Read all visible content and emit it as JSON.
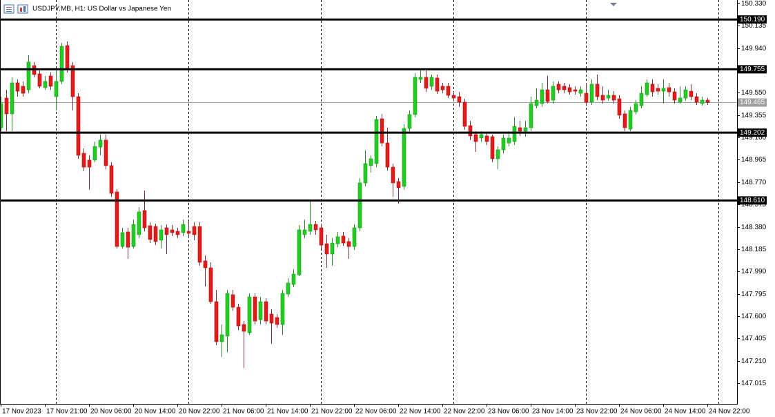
{
  "chart_data": {
    "type": "candlestick",
    "title": "USDJPY.MB, H1:  US Dollar vs Japanese Yen",
    "up_color": "#22cc22",
    "down_color": "#e01b1b",
    "ylim": [
      146.834,
      150.36
    ],
    "yticks": [
      {
        "value": 150.33,
        "label": "150.330"
      },
      {
        "value": 150.135,
        "label": "150.135"
      },
      {
        "value": 149.94,
        "label": "149.940"
      },
      {
        "value": 149.55,
        "label": "149.550"
      },
      {
        "value": 149.355,
        "label": "149.355"
      },
      {
        "value": 149.16,
        "label": "149.160"
      },
      {
        "value": 148.965,
        "label": "148.965"
      },
      {
        "value": 148.77,
        "label": "148.770"
      },
      {
        "value": 148.575,
        "label": "148.575"
      },
      {
        "value": 148.38,
        "label": "148.380"
      },
      {
        "value": 148.185,
        "label": "148.185"
      },
      {
        "value": 147.99,
        "label": "147.990"
      },
      {
        "value": 147.795,
        "label": "147.795"
      },
      {
        "value": 147.6,
        "label": "147.600"
      },
      {
        "value": 147.405,
        "label": "147.405"
      },
      {
        "value": 147.21,
        "label": "147.210"
      },
      {
        "value": 147.015,
        "label": "147.015"
      }
    ],
    "levels": [
      {
        "value": 150.19,
        "label": "150.190"
      },
      {
        "value": 149.755,
        "label": "149.755"
      },
      {
        "value": 149.202,
        "label": "149.202"
      },
      {
        "value": 148.61,
        "label": "148.610"
      }
    ],
    "current_price": {
      "value": 149.465,
      "label": "149.465"
    },
    "categories": [
      "17 Nov 2023",
      null,
      null,
      null,
      null,
      null,
      null,
      null,
      "17 Nov 21:00",
      null,
      null,
      null,
      null,
      null,
      null,
      null,
      "20 Nov 06:00",
      null,
      null,
      null,
      null,
      null,
      null,
      null,
      "20 Nov 14:00",
      null,
      null,
      null,
      null,
      null,
      null,
      null,
      "20 Nov 22:00",
      null,
      null,
      null,
      null,
      null,
      null,
      null,
      "21 Nov 06:00",
      null,
      null,
      null,
      null,
      null,
      null,
      null,
      "21 Nov 14:00",
      null,
      null,
      null,
      null,
      null,
      null,
      null,
      "21 Nov 22:00",
      null,
      null,
      null,
      null,
      null,
      null,
      null,
      "22 Nov 06:00",
      null,
      null,
      null,
      null,
      null,
      null,
      null,
      "22 Nov 14:00",
      null,
      null,
      null,
      null,
      null,
      null,
      null,
      "22 Nov 22:00",
      null,
      null,
      null,
      null,
      null,
      null,
      null,
      "23 Nov 06:00",
      null,
      null,
      null,
      null,
      null,
      null,
      null,
      "23 Nov 14:00",
      null,
      null,
      null,
      null,
      null,
      null,
      null,
      "23 Nov 22:00",
      null,
      null,
      null,
      null,
      null,
      null,
      null,
      "24 Nov 06:00",
      null,
      null,
      null,
      null,
      null,
      null,
      null,
      "24 Nov 14:00",
      null,
      null,
      null,
      null,
      null,
      null,
      null,
      "24 Nov 22:00"
    ],
    "open": [
      149.245,
      149.504,
      149.366,
      149.637,
      149.607,
      149.576,
      149.787,
      149.715,
      149.595,
      149.697,
      149.516,
      149.649,
      149.962,
      149.787,
      149.516,
      149.022,
      148.962,
      148.962,
      149.076,
      149.137,
      148.914,
      148.684,
      148.208,
      148.335,
      148.208,
      148.311,
      148.522,
      148.389,
      148.383,
      148.263,
      148.371,
      148.353,
      148.341,
      148.329,
      148.341,
      148.383,
      148.383,
      148.082,
      148.022,
      147.726,
      147.377,
      147.425,
      147.787,
      147.678,
      147.527,
      147.455,
      147.768,
      147.569,
      147.726,
      147.618,
      147.588,
      147.527,
      147.793,
      147.877,
      147.961,
      148.311,
      148.341,
      148.401,
      148.371,
      148.232,
      148.142,
      148.232,
      148.299,
      148.251,
      148.208,
      148.371,
      148.763,
      148.914,
      148.932,
      149.323,
      149.112,
      148.901,
      148.775,
      148.733,
      149.239,
      149.36,
      149.667,
      149.685,
      149.607,
      149.679,
      149.607,
      149.607,
      149.528,
      149.516,
      149.468,
      149.263,
      149.185,
      149.155,
      149.173,
      149.167,
      148.974,
      149.052,
      149.112,
      149.124,
      149.245,
      149.215,
      149.245,
      149.438,
      149.456,
      149.576,
      149.486,
      149.625,
      149.607,
      149.595,
      149.576,
      149.546,
      149.546,
      149.468,
      149.625,
      149.528,
      149.504,
      149.528,
      149.498,
      149.366,
      149.233,
      149.384,
      149.438,
      149.534,
      149.625,
      149.589,
      149.564,
      149.595,
      149.558,
      149.468,
      149.504,
      149.564,
      149.516,
      149.456,
      149.486
    ],
    "high": [
      149.516,
      149.576,
      149.685,
      149.667,
      149.649,
      149.878,
      149.818,
      149.757,
      149.697,
      149.727,
      149.757,
      149.986,
      149.998,
      149.818,
      149.546,
      149.064,
      149.004,
      149.124,
      149.185,
      149.185,
      148.944,
      148.709,
      148.371,
      148.371,
      148.443,
      148.552,
      148.697,
      148.419,
      148.407,
      148.395,
      148.401,
      148.395,
      148.371,
      148.443,
      148.431,
      148.419,
      148.419,
      148.13,
      148.07,
      147.829,
      147.527,
      147.829,
      147.829,
      147.708,
      147.557,
      147.799,
      147.799,
      147.768,
      147.756,
      147.66,
      147.618,
      147.829,
      147.931,
      148.01,
      148.395,
      148.443,
      148.6,
      148.431,
      148.401,
      148.311,
      148.281,
      148.335,
      148.335,
      148.281,
      148.401,
      148.805,
      149.046,
      149.004,
      149.347,
      149.366,
      149.245,
      148.932,
      148.805,
      149.275,
      149.396,
      149.721,
      149.757,
      149.757,
      149.709,
      149.709,
      149.637,
      149.637,
      149.558,
      149.558,
      149.498,
      149.305,
      149.215,
      149.215,
      149.203,
      149.185,
      149.082,
      149.185,
      149.215,
      149.335,
      149.305,
      149.305,
      149.516,
      149.589,
      149.637,
      149.697,
      149.649,
      149.649,
      149.637,
      149.625,
      149.607,
      149.607,
      149.637,
      149.667,
      149.709,
      149.607,
      149.576,
      149.564,
      149.528,
      149.396,
      149.426,
      149.486,
      149.607,
      149.667,
      149.667,
      149.625,
      149.667,
      149.637,
      149.589,
      149.607,
      149.607,
      149.625,
      149.546,
      149.516,
      149.504
    ],
    "low": [
      149.215,
      149.215,
      149.215,
      149.516,
      149.516,
      149.546,
      149.685,
      149.589,
      149.576,
      149.576,
      149.396,
      149.625,
      149.727,
      149.396,
      148.974,
      148.865,
      148.703,
      148.944,
      149.004,
      148.883,
      148.642,
      148.19,
      148.19,
      148.1,
      148.19,
      148.281,
      148.341,
      148.238,
      148.22,
      148.19,
      148.142,
      148.299,
      148.281,
      148.299,
      148.281,
      148.263,
      148.04,
      147.859,
      147.708,
      147.347,
      147.244,
      147.286,
      147.648,
      147.479,
      147.148,
      147.437,
      147.527,
      147.527,
      147.527,
      147.359,
      147.497,
      147.437,
      147.768,
      147.853,
      147.949,
      148.281,
      148.311,
      148.311,
      148.19,
      148.022,
      148.04,
      148.202,
      148.214,
      148.1,
      148.178,
      148.341,
      148.733,
      148.853,
      148.901,
      149.082,
      148.871,
      148.642,
      148.582,
      148.703,
      149.203,
      149.335,
      149.637,
      149.558,
      149.576,
      149.54,
      149.546,
      149.504,
      149.474,
      149.426,
      149.227,
      149.137,
      149.034,
      149.124,
      149.094,
      148.944,
      148.883,
      149.022,
      149.082,
      149.094,
      149.173,
      149.167,
      149.215,
      149.414,
      149.426,
      149.456,
      149.456,
      149.546,
      149.546,
      149.534,
      149.534,
      149.516,
      149.444,
      149.444,
      149.486,
      149.456,
      149.48,
      149.456,
      149.323,
      149.215,
      149.215,
      149.36,
      149.414,
      149.516,
      149.516,
      149.534,
      149.456,
      149.516,
      149.456,
      149.456,
      149.48,
      149.486,
      149.444,
      149.438,
      149.444
    ],
    "close": [
      149.456,
      149.366,
      149.637,
      149.564,
      149.546,
      149.818,
      149.709,
      149.607,
      149.649,
      149.607,
      149.649,
      149.956,
      149.757,
      149.516,
      149.004,
      148.901,
      148.901,
      149.082,
      149.137,
      148.914,
      148.672,
      148.208,
      148.329,
      148.202,
      148.401,
      148.51,
      148.371,
      148.269,
      148.251,
      148.353,
      148.311,
      148.329,
      148.311,
      148.401,
      148.323,
      148.311,
      148.07,
      148.022,
      147.726,
      147.377,
      147.437,
      147.799,
      147.678,
      147.515,
      147.467,
      147.768,
      147.557,
      147.726,
      147.557,
      147.539,
      147.527,
      147.799,
      147.889,
      147.967,
      148.353,
      148.353,
      148.401,
      148.353,
      148.22,
      148.142,
      148.238,
      148.293,
      148.238,
      148.208,
      148.371,
      148.763,
      148.932,
      148.974,
      149.317,
      149.112,
      148.901,
      148.763,
      148.721,
      149.239,
      149.36,
      149.685,
      149.685,
      149.589,
      149.685,
      149.564,
      149.576,
      149.528,
      149.504,
      149.468,
      149.257,
      149.173,
      149.124,
      149.185,
      149.124,
      148.974,
      149.052,
      149.155,
      149.155,
      149.257,
      149.215,
      149.245,
      149.456,
      149.486,
      149.576,
      149.474,
      149.607,
      149.576,
      149.576,
      149.558,
      149.564,
      149.576,
      149.468,
      149.625,
      149.516,
      149.486,
      149.528,
      149.486,
      149.354,
      149.245,
      149.396,
      149.456,
      149.546,
      149.637,
      149.558,
      149.564,
      149.589,
      149.558,
      149.486,
      149.504,
      149.576,
      149.516,
      149.468,
      149.486,
      149.465
    ]
  }
}
